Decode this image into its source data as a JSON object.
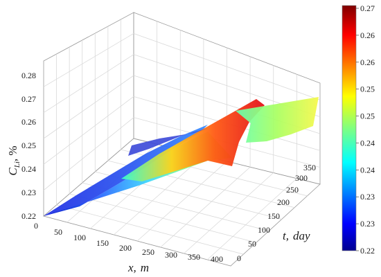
{
  "chart_data": {
    "type": "surface3d",
    "x_axis": {
      "label_var": "x,",
      "label_unit": "m",
      "ticks": [
        "0",
        "50",
        "100",
        "150",
        "200",
        "250",
        "300",
        "350",
        "400"
      ],
      "range": [
        0,
        400
      ]
    },
    "t_axis": {
      "label_var": "t,",
      "label_unit": "day",
      "ticks": [
        "0",
        "50",
        "100",
        "150",
        "200",
        "250",
        "300",
        "350"
      ],
      "range": [
        0,
        350
      ]
    },
    "z_axis": {
      "label_var": "C",
      "label_sub": "Li",
      "label_unit": ", %",
      "ticks": [
        "0.22",
        "0.23",
        "0.24",
        "0.25",
        "0.26",
        "0.27",
        "0.28"
      ],
      "range": [
        0.22,
        0.28
      ]
    },
    "colorbar": {
      "ticks": [
        "0.27",
        "0.26",
        "0.26",
        "0.25",
        "0.25",
        "0.24",
        "0.24",
        "0.23",
        "0.23",
        "0.22"
      ],
      "colormap": [
        "#00008f",
        "#0000ff",
        "#0080ff",
        "#00ffff",
        "#80ff80",
        "#ffff00",
        "#ff8000",
        "#ff0000",
        "#800000"
      ]
    },
    "grid": true,
    "legend": "colorbar-right",
    "surface_samples": [
      {
        "x": 0,
        "t": 0,
        "c": 0.22
      },
      {
        "x": 200,
        "t": 0,
        "c": 0.232
      },
      {
        "x": 400,
        "t": 0,
        "c": 0.243
      },
      {
        "x": 0,
        "t": 175,
        "c": 0.236
      },
      {
        "x": 200,
        "t": 175,
        "c": 0.251
      },
      {
        "x": 400,
        "t": 175,
        "c": 0.262
      },
      {
        "x": 0,
        "t": 350,
        "c": 0.246
      },
      {
        "x": 200,
        "t": 350,
        "c": 0.259
      },
      {
        "x": 400,
        "t": 350,
        "c": 0.27
      }
    ]
  }
}
